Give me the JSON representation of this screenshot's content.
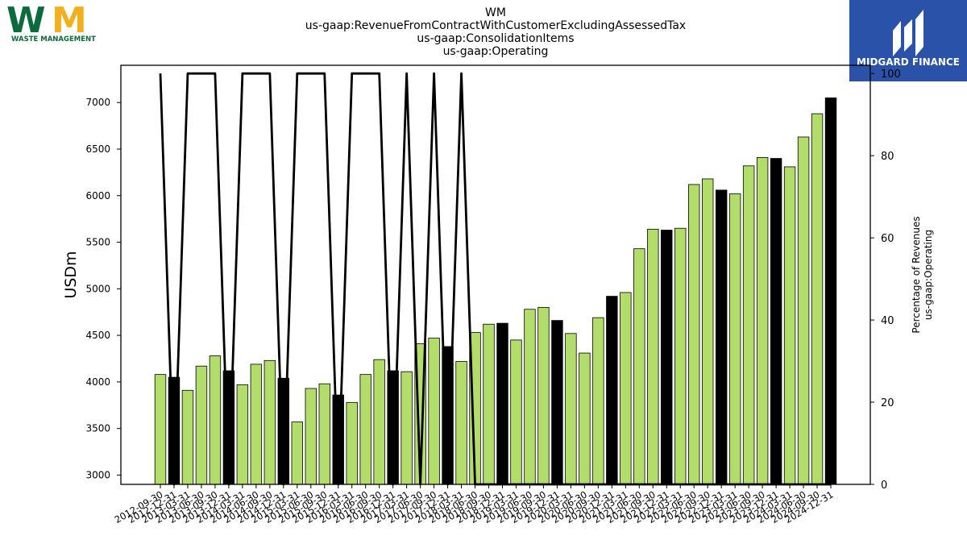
{
  "logos": {
    "left": {
      "lettering": "WM",
      "caption": "WASTE MANAGEMENT",
      "colors": {
        "green": "#0a6b3c",
        "yellow": "#f2b01e"
      }
    },
    "right": {
      "caption": "MIDGARD FINANCE",
      "background": "#2a52a8"
    }
  },
  "chart_data": {
    "type": "bar",
    "title_lines": [
      "WM",
      "us-gaap:RevenueFromContractWithCustomerExcludingAssessedTax",
      "us-gaap:ConsolidationItems",
      "us-gaap:Operating"
    ],
    "ylabel": "USDm",
    "y2label_lines": [
      "Percentage of Revenues",
      "us-gaap:Operating"
    ],
    "ylim": [
      2900,
      7400
    ],
    "y_ticks": [
      3000,
      3500,
      4000,
      4500,
      5000,
      5500,
      6000,
      6500,
      7000
    ],
    "y2lim": [
      0,
      102
    ],
    "y2_ticks": [
      0,
      20,
      40,
      60,
      80,
      100
    ],
    "grid": false,
    "colors": {
      "bar": "#b2dd6b",
      "bar_q4": "#000000",
      "line": "#000000"
    },
    "categories": [
      "2012-09-30",
      "2012-12-31",
      "2013-03-31",
      "2013-06-30",
      "2013-09-30",
      "2013-12-31",
      "2014-03-31",
      "2014-06-30",
      "2014-09-30",
      "2014-12-31",
      "2015-03-31",
      "2015-06-30",
      "2015-09-30",
      "2015-12-31",
      "2016-03-31",
      "2016-06-30",
      "2016-09-30",
      "2016-12-31",
      "2017-03-31",
      "2017-06-30",
      "2017-09-30",
      "2017-12-31",
      "2018-03-31",
      "2018-06-30",
      "2018-09-30",
      "2018-12-31",
      "2019-03-31",
      "2019-06-30",
      "2019-09-30",
      "2019-12-31",
      "2020-03-31",
      "2020-06-30",
      "2020-09-30",
      "2020-12-31",
      "2021-03-31",
      "2021-06-30",
      "2021-09-30",
      "2021-12-31",
      "2022-03-31",
      "2022-06-30",
      "2022-09-30",
      "2022-12-31",
      "2023-03-31",
      "2023-06-30",
      "2023-09-30",
      "2023-12-31",
      "2024-03-31",
      "2024-06-30",
      "2024-09-30",
      "2024-12-31"
    ],
    "series": [
      {
        "values": [
          4080,
          4050,
          3910,
          4170,
          4280,
          4120,
          3970,
          4190,
          4230,
          4040,
          3570,
          3930,
          3980,
          3860,
          3780,
          4080,
          4240,
          4120,
          4110,
          4410,
          4470,
          4380,
          4220,
          4530,
          4620,
          4630,
          4450,
          4780,
          4800,
          4660,
          4520,
          4310,
          4690,
          4920,
          4960,
          5430,
          5640,
          5630,
          5650,
          6120,
          6180,
          6060,
          6020,
          6320,
          6410,
          6400,
          6310,
          6630,
          6880,
          7050
        ]
      },
      {
        "type": "line",
        "axis": "right",
        "values": [
          100,
          0,
          100,
          100,
          100,
          0,
          100,
          100,
          100,
          0,
          100,
          100,
          100,
          0,
          100,
          100,
          100,
          0,
          100,
          0,
          100,
          0,
          100,
          0,
          0,
          0,
          0,
          0,
          0,
          0,
          0,
          0,
          0,
          0,
          0,
          0,
          0,
          0,
          0,
          0,
          0,
          0,
          0,
          0,
          0,
          0,
          0,
          0,
          0,
          0
        ]
      }
    ]
  }
}
